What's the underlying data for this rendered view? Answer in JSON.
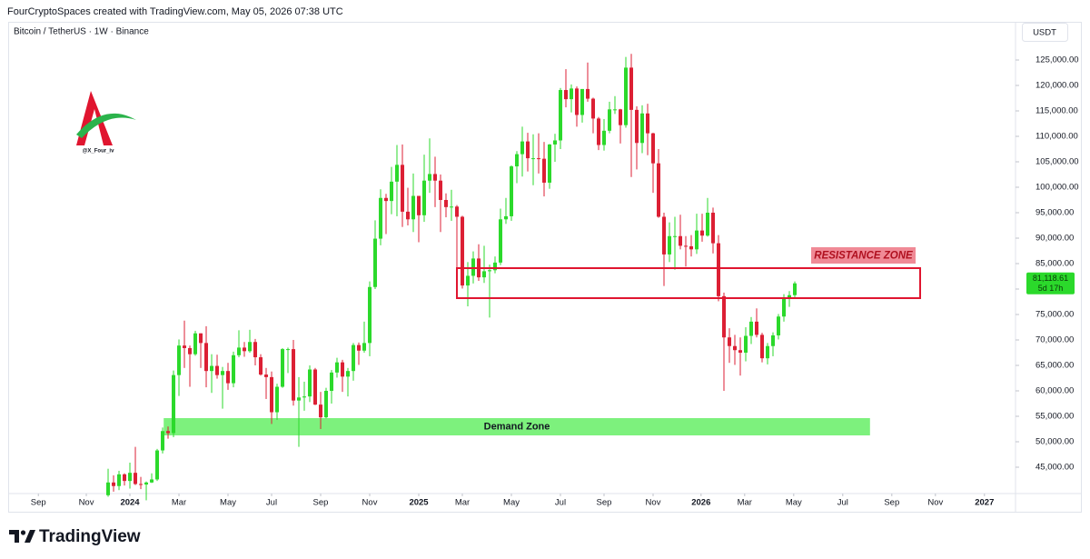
{
  "header": {
    "credit": "FourCryptoSpaces created with TradingView.com, May 05, 2026 07:38 UTC"
  },
  "chart_data": {
    "type": "candlestick",
    "title": "Bitcoin / TetherUS · 1W · Binance",
    "currency": "USDT",
    "watermark": "@X_Four_iv",
    "up_color": "#2bd92b",
    "down_color": "#dc1f34",
    "xlim": [
      -18.17,
      166.5
    ],
    "ylim": [
      40360,
      128750
    ],
    "xticks": [
      {
        "value": -12.8,
        "label": "Sep"
      },
      {
        "value": -4,
        "label": "Nov"
      },
      {
        "value": 4,
        "label": "2024"
      },
      {
        "value": 13,
        "label": "Mar"
      },
      {
        "value": 22,
        "label": "May"
      },
      {
        "value": 30,
        "label": "Jul"
      },
      {
        "value": 39,
        "label": "Sep"
      },
      {
        "value": 48,
        "label": "Nov"
      },
      {
        "value": 57,
        "label": "2025"
      },
      {
        "value": 65,
        "label": "Mar"
      },
      {
        "value": 74,
        "label": "May"
      },
      {
        "value": 83,
        "label": "Jul"
      },
      {
        "value": 91,
        "label": "Sep"
      },
      {
        "value": 100,
        "label": "Nov"
      },
      {
        "value": 108.8,
        "label": "2026"
      },
      {
        "value": 116.8,
        "label": "Mar"
      },
      {
        "value": 125.8,
        "label": "May"
      },
      {
        "value": 134.8,
        "label": "Jul"
      },
      {
        "value": 143.8,
        "label": "Sep"
      },
      {
        "value": 151.8,
        "label": "Nov"
      },
      {
        "value": 160.8,
        "label": "2027"
      }
    ],
    "yticks": [
      {
        "value": 45000,
        "label": "45,000.00"
      },
      {
        "value": 50000,
        "label": "50,000.00"
      },
      {
        "value": 55000,
        "label": "55,000.00"
      },
      {
        "value": 60000,
        "label": "60,000.00"
      },
      {
        "value": 65000,
        "label": "65,000.00"
      },
      {
        "value": 70000,
        "label": "70,000.00"
      },
      {
        "value": 75000,
        "label": "75,000.00"
      },
      {
        "value": 80000,
        "label": "80,000.00"
      },
      {
        "value": 85000,
        "label": "85,000.00"
      },
      {
        "value": 90000,
        "label": "90,000.00"
      },
      {
        "value": 95000,
        "label": "95,000.00"
      },
      {
        "value": 100000,
        "label": "100,000.00"
      },
      {
        "value": 105000,
        "label": "105,000.00"
      },
      {
        "value": 110000,
        "label": "110,000.00"
      },
      {
        "value": 115000,
        "label": "115,000.00"
      },
      {
        "value": 120000,
        "label": "120,000.00"
      },
      {
        "value": 125000,
        "label": "125,000.00"
      }
    ],
    "last_price": {
      "label": "81,118.61",
      "countdown": "5d 17h",
      "color": "#2bd92b"
    },
    "zones": [
      {
        "label": "RESISTANCE ZONE",
        "x": [
          64,
          149
        ],
        "y": [
          78214,
          84107
        ],
        "color": "#e0152f",
        "label_color": "#f08a96"
      },
      {
        "label": "Demand Zone",
        "x": [
          10.2,
          139.8
        ],
        "y": [
          51250,
          54643
        ],
        "color": "#76f076"
      }
    ],
    "candles": [
      [
        39500,
        44700,
        39200,
        42000
      ],
      [
        42000,
        43400,
        40200,
        41300
      ],
      [
        41300,
        44300,
        40500,
        43600
      ],
      [
        43600,
        43800,
        41400,
        42300
      ],
      [
        42300,
        45900,
        40800,
        43900
      ],
      [
        43900,
        49000,
        41500,
        41700
      ],
      [
        41700,
        43100,
        40700,
        41600
      ],
      [
        41600,
        42200,
        38500,
        42000
      ],
      [
        42000,
        43800,
        41900,
        42600
      ],
      [
        42600,
        48600,
        42300,
        48300
      ],
      [
        48300,
        52800,
        47700,
        52100
      ],
      [
        52100,
        53000,
        50600,
        51700
      ],
      [
        51700,
        64000,
        50900,
        63100
      ],
      [
        63100,
        70100,
        59000,
        68900
      ],
      [
        68900,
        73800,
        64500,
        68400
      ],
      [
        68400,
        68900,
        60800,
        67200
      ],
      [
        67200,
        71800,
        66900,
        71300
      ],
      [
        71300,
        71300,
        64500,
        69400
      ],
      [
        69400,
        72700,
        60700,
        63900
      ],
      [
        63900,
        67200,
        59600,
        64900
      ],
      [
        64900,
        67100,
        62400,
        63100
      ],
      [
        63100,
        64700,
        56500,
        63900
      ],
      [
        63900,
        65500,
        60200,
        61500
      ],
      [
        61500,
        67700,
        60700,
        67000
      ],
      [
        67000,
        71900,
        66600,
        68500
      ],
      [
        68500,
        69600,
        66700,
        67800
      ],
      [
        67800,
        72000,
        67500,
        69600
      ],
      [
        69600,
        70200,
        65000,
        66600
      ],
      [
        66600,
        67200,
        63000,
        63200
      ],
      [
        63200,
        64500,
        58400,
        62700
      ],
      [
        62700,
        63800,
        53500,
        55800
      ],
      [
        55800,
        61400,
        54300,
        60800
      ],
      [
        60800,
        68400,
        60600,
        68200
      ],
      [
        68200,
        68500,
        63500,
        68200
      ],
      [
        68200,
        70000,
        57100,
        58100
      ],
      [
        58100,
        62700,
        49000,
        58700
      ],
      [
        58700,
        61800,
        56100,
        58900
      ],
      [
        58900,
        65000,
        57800,
        64200
      ],
      [
        64200,
        64500,
        57200,
        57300
      ],
      [
        57300,
        59800,
        52500,
        54800
      ],
      [
        54800,
        60600,
        54600,
        60000
      ],
      [
        60000,
        64100,
        57500,
        63600
      ],
      [
        63600,
        66500,
        62600,
        65600
      ],
      [
        65600,
        66100,
        59800,
        62800
      ],
      [
        62800,
        64500,
        58900,
        63900
      ],
      [
        63900,
        69400,
        62000,
        69000
      ],
      [
        69000,
        69500,
        65100,
        67900
      ],
      [
        67900,
        73600,
        67500,
        69400
      ],
      [
        69400,
        81500,
        66800,
        80400
      ],
      [
        80400,
        93500,
        80000,
        89900
      ],
      [
        89900,
        99600,
        88600,
        97900
      ],
      [
        97900,
        98700,
        90800,
        97300
      ],
      [
        97300,
        104000,
        94700,
        101100
      ],
      [
        101100,
        108300,
        94300,
        104400
      ],
      [
        104400,
        108400,
        92200,
        95200
      ],
      [
        95200,
        99900,
        92500,
        93700
      ],
      [
        93700,
        102700,
        91200,
        98300
      ],
      [
        98300,
        98300,
        89200,
        94500
      ],
      [
        94500,
        106400,
        93200,
        101300
      ],
      [
        101300,
        109600,
        98900,
        102600
      ],
      [
        102600,
        106000,
        96100,
        101300
      ],
      [
        101300,
        102500,
        91200,
        97500
      ],
      [
        97500,
        98800,
        94100,
        96100
      ],
      [
        96100,
        99500,
        93400,
        96200
      ],
      [
        96200,
        96500,
        78200,
        94200
      ],
      [
        94200,
        94400,
        80100,
        80700
      ],
      [
        80700,
        85300,
        76600,
        82600
      ],
      [
        82600,
        87400,
        81100,
        86000
      ],
      [
        86000,
        88800,
        81600,
        82300
      ],
      [
        82300,
        88500,
        81200,
        83500
      ],
      [
        83500,
        84800,
        74400,
        83700
      ],
      [
        83700,
        86400,
        83100,
        85200
      ],
      [
        85200,
        95800,
        84700,
        93700
      ],
      [
        93700,
        97900,
        92800,
        94300
      ],
      [
        94300,
        104300,
        93400,
        104100
      ],
      [
        104100,
        107100,
        100800,
        106500
      ],
      [
        106500,
        111900,
        102100,
        109000
      ],
      [
        109000,
        110700,
        103100,
        105700
      ],
      [
        105700,
        110400,
        100400,
        105700
      ],
      [
        105700,
        110600,
        102700,
        105600
      ],
      [
        105600,
        108900,
        98200,
        100900
      ],
      [
        100900,
        108500,
        99700,
        108400
      ],
      [
        108400,
        110500,
        105000,
        109200
      ],
      [
        109200,
        119500,
        107500,
        119100
      ],
      [
        119100,
        123200,
        115700,
        117300
      ],
      [
        117300,
        120200,
        114700,
        119400
      ],
      [
        119400,
        119800,
        111900,
        114200
      ],
      [
        114200,
        119300,
        112700,
        119300
      ],
      [
        119300,
        124500,
        116800,
        117400
      ],
      [
        117400,
        117600,
        110600,
        113500
      ],
      [
        113500,
        113800,
        107300,
        108300
      ],
      [
        108300,
        113400,
        107200,
        111100
      ],
      [
        111100,
        116800,
        110600,
        115300
      ],
      [
        115300,
        117900,
        114400,
        115300
      ],
      [
        115300,
        115400,
        108600,
        112200
      ],
      [
        112200,
        125600,
        111700,
        123500
      ],
      [
        123500,
        126200,
        102000,
        115200
      ],
      [
        115200,
        115900,
        103500,
        108700
      ],
      [
        108700,
        116100,
        106700,
        114500
      ],
      [
        114500,
        116400,
        106300,
        110600
      ],
      [
        110600,
        110700,
        98900,
        104700
      ],
      [
        104700,
        107500,
        94000,
        94200
      ],
      [
        94200,
        95000,
        80600,
        86800
      ],
      [
        86800,
        93100,
        85300,
        90400
      ],
      [
        90400,
        94200,
        83800,
        90400
      ],
      [
        90400,
        94600,
        87800,
        88500
      ],
      [
        88500,
        90400,
        84400,
        88400
      ],
      [
        88400,
        90600,
        86400,
        87800
      ],
      [
        87800,
        94800,
        86900,
        91500
      ],
      [
        91500,
        94800,
        89300,
        90500
      ],
      [
        90500,
        97900,
        90300,
        95000
      ],
      [
        95000,
        96000,
        87000,
        89000
      ],
      [
        89000,
        90600,
        77600,
        78600
      ],
      [
        78600,
        79300,
        60000,
        70500
      ],
      [
        70500,
        72300,
        65500,
        68800
      ],
      [
        68800,
        71000,
        65100,
        68000
      ],
      [
        68000,
        70500,
        63000,
        67500
      ],
      [
        67500,
        72500,
        65800,
        70800
      ],
      [
        70800,
        74500,
        69200,
        73600
      ],
      [
        73600,
        76200,
        70500,
        71000
      ],
      [
        71000,
        71400,
        65600,
        66400
      ],
      [
        66400,
        69400,
        65200,
        68800
      ],
      [
        68800,
        71500,
        66800,
        70900
      ],
      [
        70900,
        75100,
        70100,
        74600
      ],
      [
        74600,
        79000,
        73600,
        78300
      ],
      [
        78300,
        79600,
        76500,
        78800
      ],
      [
        78800,
        81500,
        78200,
        81118.61
      ]
    ]
  },
  "footer": {
    "brand": "TradingView"
  }
}
